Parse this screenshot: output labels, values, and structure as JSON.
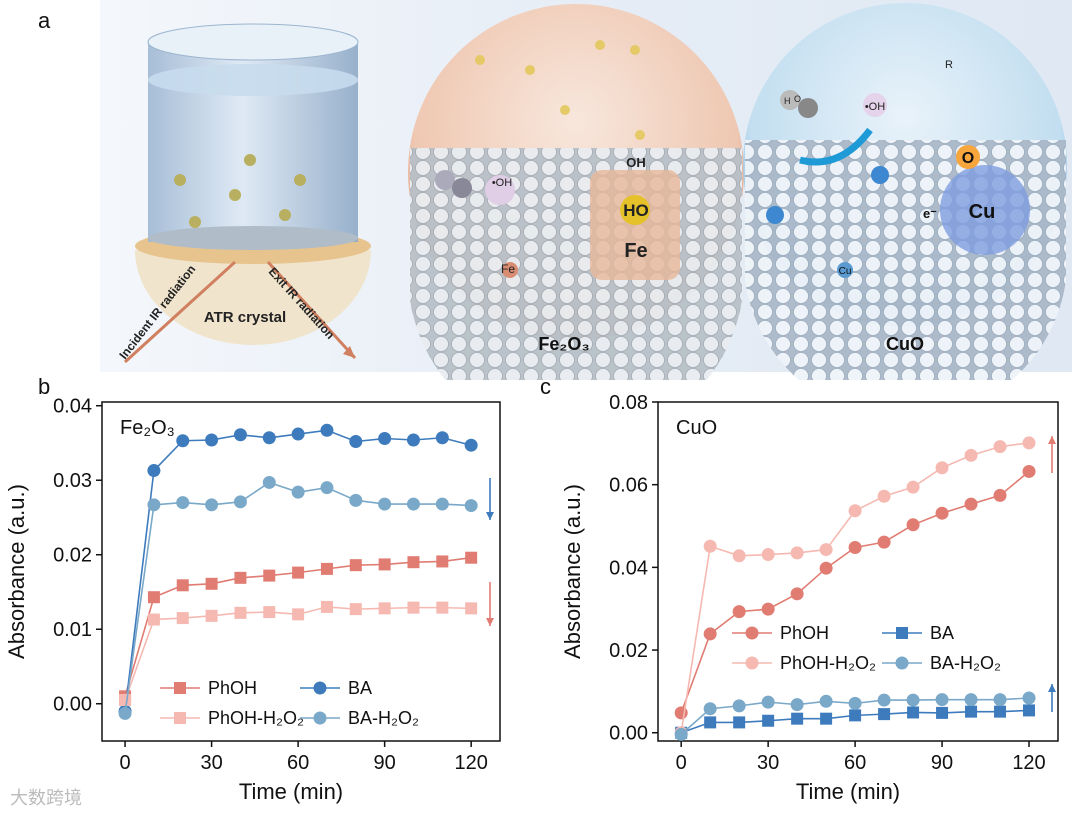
{
  "panel_labels": {
    "a": "a",
    "b": "b",
    "c": "c"
  },
  "illustration": {
    "atr_crystal": "ATR crystal",
    "incident": "Incident IR radiation",
    "exit": "Exit IR radiation",
    "fe2o3_label": "Fe₂O₃",
    "cuo_label": "CuO",
    "fe_text": "Fe",
    "ho_text": "HO",
    "oh_text": "OH",
    "oh_radical": "•OH",
    "oh_radical2": "•OH",
    "fe_small": "Fe",
    "cu_small": "Cu",
    "cu_big": "Cu",
    "o_big": "O",
    "e_minus": "e⁻",
    "r_label": "R",
    "h_label": "H",
    "o_label": "O"
  },
  "chart_data": [
    {
      "type": "line",
      "panel": "b",
      "title": "Fe₂O₃",
      "xlabel": "Time (min)",
      "ylabel": "Absorbance (a.u.)",
      "xlim": [
        -8,
        130
      ],
      "ylim": [
        -0.005,
        0.0405
      ],
      "xticks": [
        0,
        30,
        60,
        90,
        120
      ],
      "yticks": [
        0.0,
        0.01,
        0.02,
        0.03,
        0.04
      ],
      "x": [
        0,
        10,
        20,
        30,
        40,
        50,
        60,
        70,
        80,
        90,
        100,
        110,
        120
      ],
      "series": [
        {
          "name": "PhOH",
          "color": "#e07c72",
          "marker": "square",
          "values": [
            0.001,
            0.0143,
            0.0159,
            0.0161,
            0.0169,
            0.0172,
            0.0176,
            0.0181,
            0.0186,
            0.0187,
            0.019,
            0.0191,
            0.0196
          ]
        },
        {
          "name": "BA",
          "color": "#3d7bbd",
          "marker": "circle",
          "values": [
            -0.001,
            0.0313,
            0.0353,
            0.0354,
            0.0361,
            0.0357,
            0.0362,
            0.0367,
            0.0352,
            0.0356,
            0.0354,
            0.0357,
            0.0347
          ]
        },
        {
          "name": "PhOH-H₂O₂",
          "color": "#f5b9b1",
          "marker": "square",
          "values": [
            0.0005,
            0.0113,
            0.0115,
            0.0118,
            0.0122,
            0.0123,
            0.012,
            0.013,
            0.0127,
            0.0128,
            0.0129,
            0.0129,
            0.0128
          ]
        },
        {
          "name": "BA-H₂O₂",
          "color": "#7aa8c8",
          "marker": "circle",
          "values": [
            -0.0013,
            0.0267,
            0.027,
            0.0267,
            0.0271,
            0.0297,
            0.0284,
            0.029,
            0.0273,
            0.0268,
            0.0268,
            0.0268,
            0.0266
          ]
        }
      ],
      "arrows": [
        {
          "direction": "down",
          "color": "#3d7bbd"
        },
        {
          "direction": "down",
          "color": "#e07c72"
        }
      ]
    },
    {
      "type": "line",
      "panel": "c",
      "title": "CuO",
      "xlabel": "Time (min)",
      "ylabel": "Absorbance (a.u.)",
      "xlim": [
        -8,
        130
      ],
      "ylim": [
        -0.002,
        0.08
      ],
      "xticks": [
        0,
        30,
        60,
        90,
        120
      ],
      "yticks": [
        0.0,
        0.02,
        0.04,
        0.06,
        0.08
      ],
      "x": [
        0,
        10,
        20,
        30,
        40,
        50,
        60,
        70,
        80,
        90,
        100,
        110,
        120
      ],
      "series": [
        {
          "name": "PhOH",
          "color": "#e07c72",
          "marker": "circle",
          "values": [
            0.0048,
            0.0239,
            0.0293,
            0.0299,
            0.0336,
            0.0398,
            0.0448,
            0.0461,
            0.0503,
            0.0531,
            0.0553,
            0.0574,
            0.0632
          ]
        },
        {
          "name": "BA",
          "color": "#3d7bbd",
          "marker": "square",
          "values": [
            0.0,
            0.0025,
            0.0025,
            0.0029,
            0.0034,
            0.0034,
            0.0042,
            0.0045,
            0.0049,
            0.0048,
            0.0051,
            0.0051,
            0.0054
          ]
        },
        {
          "name": "PhOH-H₂O₂",
          "color": "#f5b9b1",
          "marker": "circle",
          "values": [
            0.0,
            0.0451,
            0.0428,
            0.0431,
            0.0435,
            0.0443,
            0.0537,
            0.0572,
            0.0594,
            0.0641,
            0.0671,
            0.0692,
            0.0701
          ]
        },
        {
          "name": "BA-H₂O₂",
          "color": "#7aa8c8",
          "marker": "circle",
          "values": [
            -0.0004,
            0.0058,
            0.0065,
            0.0074,
            0.0068,
            0.0076,
            0.0071,
            0.0079,
            0.0079,
            0.008,
            0.008,
            0.008,
            0.0084
          ]
        }
      ],
      "arrows": [
        {
          "direction": "up",
          "color": "#e07c72"
        },
        {
          "direction": "up",
          "color": "#3d7bbd"
        }
      ]
    }
  ],
  "watermark": "大数跨境"
}
